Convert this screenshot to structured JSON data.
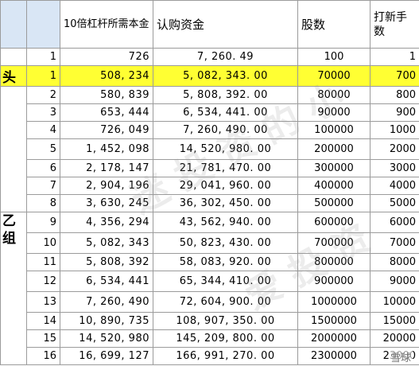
{
  "header": {
    "col_leverage": "10倍杠杆所需本金",
    "col_subscription": "认购资金",
    "col_shares": "股数",
    "col_lots": "打新手数"
  },
  "groups": {
    "head": "头",
    "yi": "乙组"
  },
  "rows": [
    {
      "idx": "1",
      "amount": "726",
      "subscription": "7, 260. 49",
      "shares": "100",
      "lots": "1"
    },
    {
      "idx": "1",
      "amount": "508, 234",
      "subscription": "5, 082, 343. 00",
      "shares": "70000",
      "lots": "700"
    },
    {
      "idx": "2",
      "amount": "580, 839",
      "subscription": "5, 808, 392. 00",
      "shares": "80000",
      "lots": "800"
    },
    {
      "idx": "3",
      "amount": "653, 444",
      "subscription": "6, 534, 441. 00",
      "shares": "90000",
      "lots": "900"
    },
    {
      "idx": "4",
      "amount": "726, 049",
      "subscription": "7, 260, 490. 00",
      "shares": "100000",
      "lots": "1000"
    },
    {
      "idx": "5",
      "amount": "1, 452, 098",
      "subscription": "14, 520, 980. 00",
      "shares": "200000",
      "lots": "2000"
    },
    {
      "idx": "6",
      "amount": "2, 178, 147",
      "subscription": "21, 781, 470. 00",
      "shares": "300000",
      "lots": "3000"
    },
    {
      "idx": "7",
      "amount": "2, 904, 196",
      "subscription": "29, 041, 960. 00",
      "shares": "400000",
      "lots": "4000"
    },
    {
      "idx": "8",
      "amount": "3, 630, 245",
      "subscription": "36, 302, 450. 00",
      "shares": "500000",
      "lots": "5000"
    },
    {
      "idx": "9",
      "amount": "4, 356, 294",
      "subscription": "43, 562, 940. 00",
      "shares": "600000",
      "lots": "6000"
    },
    {
      "idx": "10",
      "amount": "5, 082, 343",
      "subscription": "50, 823, 430. 00",
      "shares": "700000",
      "lots": "7000"
    },
    {
      "idx": "11",
      "amount": "5, 808, 392",
      "subscription": "58, 083, 920. 00",
      "shares": "800000",
      "lots": "8000"
    },
    {
      "idx": "12",
      "amount": "6, 534, 441",
      "subscription": "65, 344, 410. 00",
      "shares": "900000",
      "lots": "9000"
    },
    {
      "idx": "13",
      "amount": "7, 260, 490",
      "subscription": "72, 604, 900. 00",
      "shares": "1000000",
      "lots": "10000"
    },
    {
      "idx": "14",
      "amount": "10, 890, 735",
      "subscription": "108, 907, 350. 00",
      "shares": "1500000",
      "lots": "15000"
    },
    {
      "idx": "15",
      "amount": "14, 520, 980",
      "subscription": "145, 209, 800. 00",
      "shares": "2000000",
      "lots": "20000"
    },
    {
      "idx": "16",
      "amount": "16, 699, 127",
      "subscription": "166, 991, 270. 00",
      "shares": "2300000",
      "lots": "23000"
    }
  ],
  "watermark_text": "雪球",
  "highlight_color": "#ffff33"
}
